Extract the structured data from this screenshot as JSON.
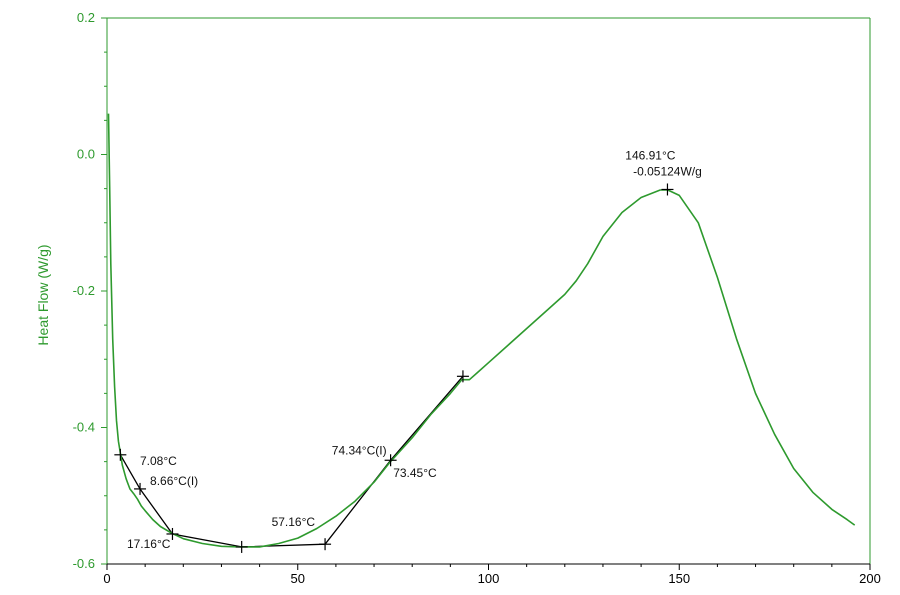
{
  "chart_data": {
    "type": "line",
    "xlim": [
      0,
      200
    ],
    "ylim": [
      -0.6,
      0.2
    ],
    "x_ticks": [
      0,
      50,
      100,
      150,
      200
    ],
    "x_tick_labels": [
      "0",
      "50",
      "100",
      "150",
      "200"
    ],
    "y_ticks": [
      0.2,
      0.0,
      -0.2,
      -0.4,
      -0.6
    ],
    "y_tick_labels": [
      "0.2",
      "0.0",
      "-0.2",
      "-0.4",
      "-0.6"
    ],
    "ylabel": "Heat Flow (W/g)",
    "xlabel": "",
    "grid": false,
    "colors": {
      "series": "#2e9a2e",
      "axis_y": "#2e9a2e",
      "construction": "#000000"
    },
    "series": [
      {
        "x": [
          0.4,
          0.7,
          1,
          1.5,
          2,
          2.5,
          3,
          4,
          5,
          6,
          7,
          8,
          9,
          10,
          12,
          14,
          17,
          20,
          25,
          30,
          35,
          40,
          45,
          50,
          55,
          60,
          65,
          70,
          74,
          80,
          85,
          90,
          93,
          95,
          97,
          100,
          105,
          110,
          115,
          120,
          123,
          126,
          130,
          135,
          140,
          145,
          147,
          150,
          155,
          160,
          165,
          170,
          175,
          180,
          185,
          190,
          194,
          196
        ],
        "y": [
          0.06,
          -0.05,
          -0.16,
          -0.27,
          -0.34,
          -0.39,
          -0.42,
          -0.455,
          -0.475,
          -0.49,
          -0.497,
          -0.505,
          -0.515,
          -0.522,
          -0.535,
          -0.545,
          -0.555,
          -0.563,
          -0.57,
          -0.574,
          -0.575,
          -0.575,
          -0.57,
          -0.562,
          -0.548,
          -0.53,
          -0.508,
          -0.48,
          -0.452,
          -0.415,
          -0.38,
          -0.35,
          -0.33,
          -0.33,
          -0.32,
          -0.305,
          -0.28,
          -0.255,
          -0.23,
          -0.205,
          -0.185,
          -0.16,
          -0.12,
          -0.085,
          -0.063,
          -0.052,
          -0.052,
          -0.06,
          -0.1,
          -0.18,
          -0.27,
          -0.35,
          -0.41,
          -0.46,
          -0.495,
          -0.52,
          -0.535,
          -0.543
        ]
      }
    ],
    "construction_lines": [
      {
        "x": [
          3.5,
          8.66,
          17.16,
          35.3,
          57.16
        ],
        "y": [
          -0.44,
          -0.49,
          -0.556,
          -0.575,
          -0.571
        ]
      },
      {
        "x": [
          57.16,
          74.34,
          93.3
        ],
        "y": [
          -0.571,
          -0.448,
          -0.325
        ]
      }
    ],
    "markers": [
      {
        "x": 3.5,
        "y": -0.44
      },
      {
        "x": 8.66,
        "y": -0.49
      },
      {
        "x": 17.16,
        "y": -0.556
      },
      {
        "x": 35.3,
        "y": -0.575
      },
      {
        "x": 57.16,
        "y": -0.571
      },
      {
        "x": 74.34,
        "y": -0.448
      },
      {
        "x": 93.3,
        "y": -0.325
      },
      {
        "x": 146.91,
        "y": -0.05124
      }
    ],
    "annotations": [
      {
        "text": "7.08°C",
        "x": 7.08,
        "y": -0.455,
        "anchor": "start",
        "dx": 6,
        "dy": 0
      },
      {
        "text": "8.66°C(I)",
        "x": 8.66,
        "y": -0.49,
        "anchor": "start",
        "dx": 10,
        "dy": -4
      },
      {
        "text": "17.16°C",
        "x": 17.16,
        "y": -0.556,
        "anchor": "end",
        "dx": -2,
        "dy": 14
      },
      {
        "text": "57.16°C",
        "x": 57.16,
        "y": -0.571,
        "anchor": "end",
        "dx": -10,
        "dy": -18
      },
      {
        "text": "74.34°C(I)",
        "x": 74.34,
        "y": -0.448,
        "anchor": "end",
        "dx": -4,
        "dy": -6
      },
      {
        "text": "73.45°C",
        "x": 73.45,
        "y": -0.458,
        "anchor": "start",
        "dx": 6,
        "dy": 10
      },
      {
        "text": "146.91°C",
        "x": 146.91,
        "y": -0.05124,
        "anchor": "end",
        "dx": 8,
        "dy": -30
      },
      {
        "text": "-0.05124W/g",
        "x": 146.91,
        "y": -0.05124,
        "anchor": "middle",
        "dx": 0,
        "dy": -14
      }
    ]
  }
}
